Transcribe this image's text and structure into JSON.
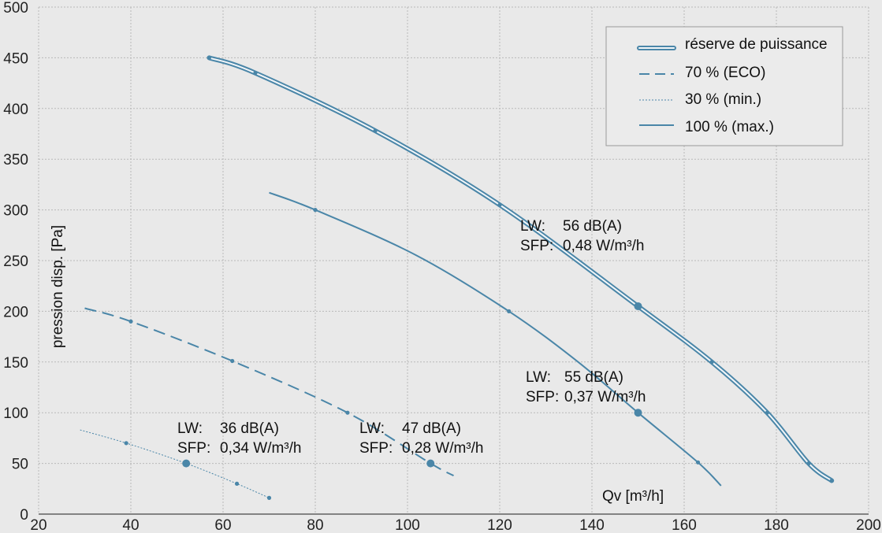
{
  "chart_data": {
    "type": "line",
    "xlabel": "Qv [m³/h]",
    "ylabel": "pression disp. [Pa]",
    "xlim": [
      20,
      200
    ],
    "ylim": [
      0,
      500
    ],
    "xticks": [
      "20",
      "40",
      "60",
      "80",
      "100",
      "120",
      "140",
      "160",
      "180",
      "200"
    ],
    "yticks": [
      "0",
      "50",
      "100",
      "150",
      "200",
      "250",
      "300",
      "350",
      "400",
      "450",
      "500"
    ],
    "grid": true,
    "legend_position": "top-right",
    "colors": {
      "line": "#4a86a8",
      "background": "#e9e9e9",
      "grid": "#b9b9b9"
    },
    "series": [
      {
        "name": "réserve de puissance",
        "style": "double",
        "points": [
          [
            57,
            450
          ],
          [
            67,
            435
          ],
          [
            93,
            378
          ],
          [
            120,
            305
          ],
          [
            150,
            205
          ],
          [
            166,
            150
          ],
          [
            178,
            100
          ],
          [
            187,
            50
          ],
          [
            192,
            33
          ]
        ],
        "markers": [
          [
            57,
            450
          ],
          [
            67,
            435
          ],
          [
            93,
            378
          ],
          [
            120,
            305
          ],
          [
            166,
            150
          ],
          [
            178,
            100
          ],
          [
            187,
            50
          ],
          [
            192,
            33
          ]
        ]
      },
      {
        "name": "70 % (ECO)",
        "style": "dashed",
        "points": [
          [
            30,
            203
          ],
          [
            40,
            190
          ],
          [
            62,
            151
          ],
          [
            87,
            100
          ],
          [
            105,
            50
          ],
          [
            110,
            38
          ]
        ],
        "markers": [
          [
            40,
            190
          ],
          [
            62,
            151
          ],
          [
            87,
            100
          ]
        ]
      },
      {
        "name": "30 % (min.)",
        "style": "dotted",
        "points": [
          [
            29,
            83
          ],
          [
            39,
            70
          ],
          [
            52,
            50
          ],
          [
            63,
            30
          ],
          [
            70,
            16
          ]
        ],
        "markers": [
          [
            39,
            70
          ],
          [
            63,
            30
          ],
          [
            70,
            16
          ]
        ]
      },
      {
        "name": "100 % (max.)",
        "style": "solid",
        "points": [
          [
            70,
            317
          ],
          [
            80,
            300
          ],
          [
            102,
            255
          ],
          [
            122,
            200
          ],
          [
            137,
            150
          ],
          [
            150,
            100
          ],
          [
            163,
            51
          ],
          [
            168,
            28
          ]
        ],
        "markers": [
          [
            80,
            300
          ],
          [
            122,
            200
          ],
          [
            163,
            51
          ]
        ]
      }
    ],
    "operating_points": [
      [
        52,
        50
      ],
      [
        105,
        50
      ],
      [
        150,
        100
      ],
      [
        150,
        205
      ]
    ],
    "annotations": [
      {
        "lw_label": "LW:",
        "lw_value": "36 dB(A)",
        "sfp_label": "SFP:",
        "sfp_value": "0,34 W/m³/h"
      },
      {
        "lw_label": "LW:",
        "lw_value": "47 dB(A)",
        "sfp_label": "SFP:",
        "sfp_value": "0,28 W/m³/h"
      },
      {
        "lw_label": "LW:",
        "lw_value": "55 dB(A)",
        "sfp_label": "SFP:",
        "sfp_value": "0,37 W/m³/h"
      },
      {
        "lw_label": "LW:",
        "lw_value": "56 dB(A)",
        "sfp_label": "SFP:",
        "sfp_value": "0,48 W/m³/h"
      }
    ]
  }
}
